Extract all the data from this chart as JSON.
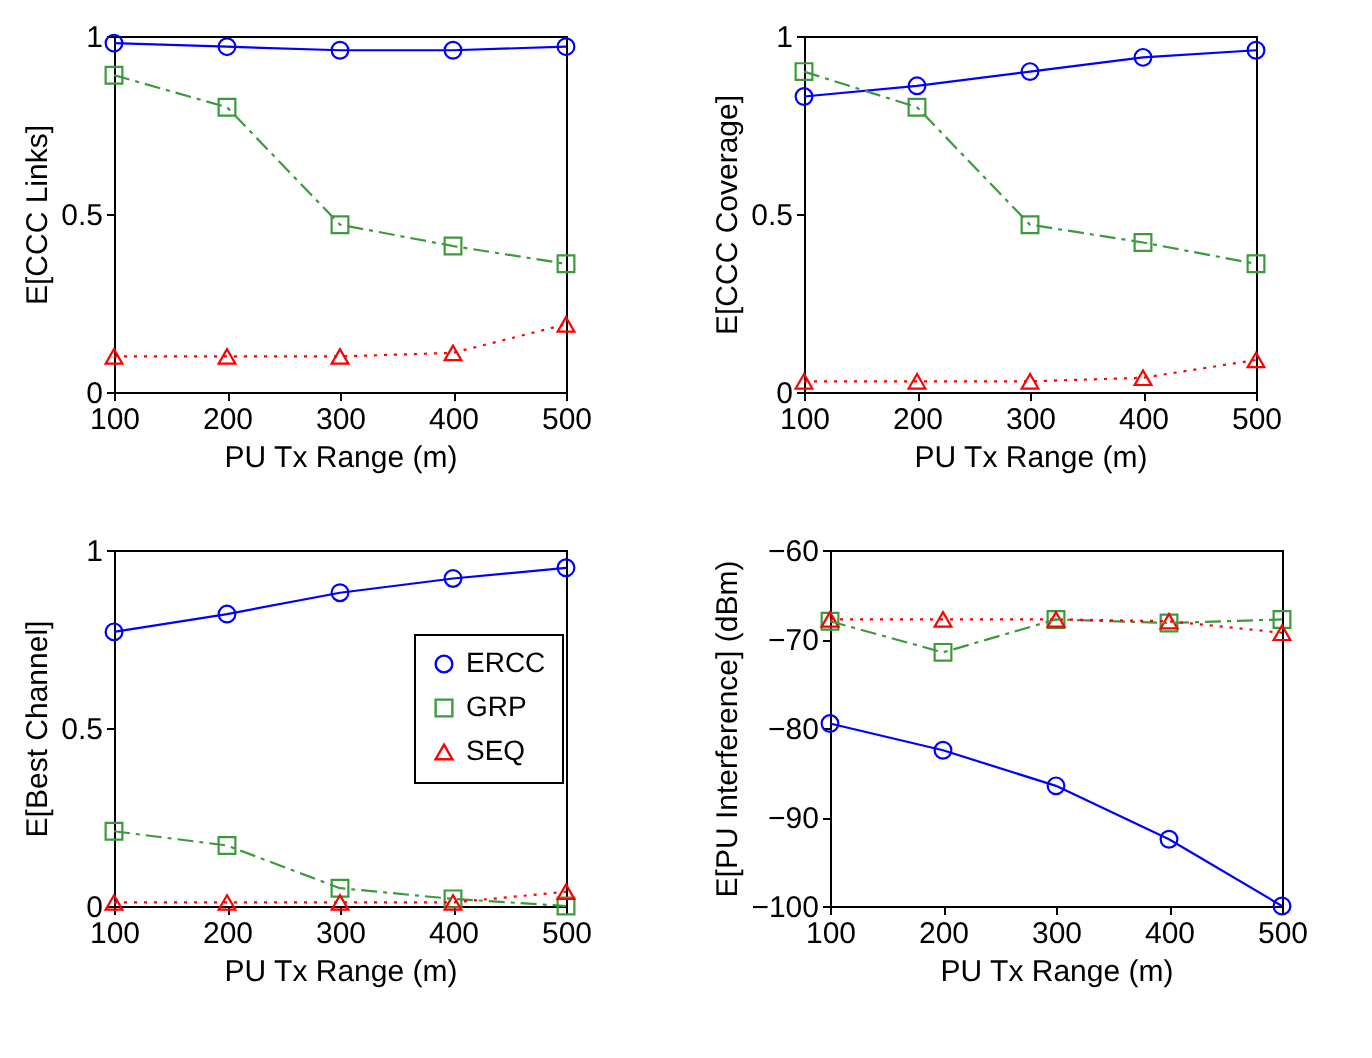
{
  "chart_data": [
    {
      "type": "line",
      "xlabel": "PU Tx Range (m)",
      "ylabel": "E[CCC Links]",
      "x": [
        100,
        200,
        300,
        400,
        500
      ],
      "xlim": [
        100,
        500
      ],
      "xticks": [
        100,
        200,
        300,
        400,
        500
      ],
      "ylim": [
        0,
        1
      ],
      "yticks": [
        0,
        0.5,
        1
      ],
      "series": [
        {
          "color": "#0000ff",
          "marker": "circle",
          "line_style": "solid",
          "values": [
            0.98,
            0.97,
            0.96,
            0.96,
            0.97
          ]
        },
        {
          "color": "#3c9a3c",
          "marker": "square",
          "line_style": "dashed",
          "values": [
            0.89,
            0.8,
            0.47,
            0.41,
            0.36
          ]
        },
        {
          "color": "#ff0000",
          "marker": "triangle",
          "line_style": "dotted",
          "values": [
            0.1,
            0.1,
            0.1,
            0.11,
            0.19
          ]
        }
      ]
    },
    {
      "type": "line",
      "xlabel": "PU Tx Range (m)",
      "ylabel": "E[CCC Coverage]",
      "x": [
        100,
        200,
        300,
        400,
        500
      ],
      "xlim": [
        100,
        500
      ],
      "xticks": [
        100,
        200,
        300,
        400,
        500
      ],
      "ylim": [
        0,
        1
      ],
      "yticks": [
        0,
        0.5,
        1
      ],
      "series": [
        {
          "color": "#0000ff",
          "marker": "circle",
          "line_style": "solid",
          "values": [
            0.83,
            0.86,
            0.9,
            0.94,
            0.96
          ]
        },
        {
          "color": "#3c9a3c",
          "marker": "square",
          "line_style": "dashed",
          "values": [
            0.9,
            0.8,
            0.47,
            0.42,
            0.36
          ]
        },
        {
          "color": "#ff0000",
          "marker": "triangle",
          "line_style": "dotted",
          "values": [
            0.03,
            0.03,
            0.03,
            0.04,
            0.09
          ]
        }
      ]
    },
    {
      "type": "line",
      "xlabel": "PU Tx Range (m)",
      "ylabel": "E[Best Channel]",
      "x": [
        100,
        200,
        300,
        400,
        500
      ],
      "xlim": [
        100,
        500
      ],
      "xticks": [
        100,
        200,
        300,
        400,
        500
      ],
      "ylim": [
        0,
        1
      ],
      "yticks": [
        0,
        0.5,
        1
      ],
      "legend": "top right",
      "series": [
        {
          "name": "ERCC",
          "color": "#0000ff",
          "marker": "circle",
          "line_style": "solid",
          "values": [
            0.77,
            0.82,
            0.88,
            0.92,
            0.95
          ]
        },
        {
          "name": "GRP",
          "color": "#3c9a3c",
          "marker": "square",
          "line_style": "dashed",
          "values": [
            0.21,
            0.17,
            0.05,
            0.02,
            0.0
          ]
        },
        {
          "name": "SEQ",
          "color": "#ff0000",
          "marker": "triangle",
          "line_style": "dotted",
          "values": [
            0.01,
            0.01,
            0.01,
            0.01,
            0.04
          ]
        }
      ]
    },
    {
      "type": "line",
      "xlabel": "PU Tx Range (m)",
      "ylabel": "E[PU Interference] (dBm)",
      "x": [
        100,
        200,
        300,
        400,
        500
      ],
      "xlim": [
        100,
        500
      ],
      "xticks": [
        100,
        200,
        300,
        400,
        500
      ],
      "ylim": [
        -100,
        -60
      ],
      "yticks": [
        -100,
        -90,
        -80,
        -70,
        -60
      ],
      "series": [
        {
          "color": "#0000ff",
          "marker": "circle",
          "line_style": "solid",
          "values": [
            -79.5,
            -82.5,
            -86.5,
            -92.5,
            -100
          ]
        },
        {
          "color": "#3c9a3c",
          "marker": "square",
          "line_style": "dashed",
          "values": [
            -68,
            -71.5,
            -67.8,
            -68.2,
            -67.8
          ]
        },
        {
          "color": "#ff0000",
          "marker": "triangle",
          "line_style": "dotted",
          "values": [
            -67.8,
            -67.8,
            -67.8,
            -68,
            -69.3
          ]
        }
      ]
    }
  ]
}
